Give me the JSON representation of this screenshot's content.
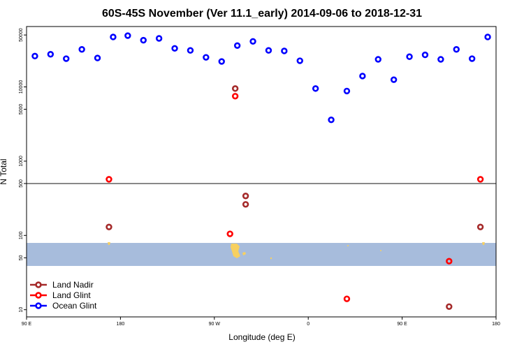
{
  "chart_data": {
    "type": "scatter",
    "title": "60S-45S November (Ver 11.1_early)   2014-09-06 to 2018-12-31",
    "xlabel": "Longitude (deg E)",
    "ylabel": "N Total",
    "x_ticks": [
      {
        "value": 90,
        "label": "90 E"
      },
      {
        "value": 180,
        "label": "180"
      },
      {
        "value": 270,
        "label": "90 W"
      },
      {
        "value": 360,
        "label": "0"
      },
      {
        "value": 450,
        "label": "90 E"
      },
      {
        "value": 540,
        "label": "180"
      }
    ],
    "xlim": [
      90,
      540
    ],
    "y_scale": "log",
    "y_ticks": [
      10,
      50,
      100,
      500,
      1000,
      5000,
      10000,
      50000
    ],
    "ylim": [
      8,
      65000
    ],
    "reference_line": 500,
    "ocean_band": [
      32,
      78
    ],
    "legend_position": "bottom-left",
    "series": [
      {
        "name": "Land Nadir",
        "color": "#a52a2a",
        "points": [
          {
            "x": 169,
            "y": 130
          },
          {
            "x": 290,
            "y": 9500
          },
          {
            "x": 300,
            "y": 340
          },
          {
            "x": 300,
            "y": 262
          },
          {
            "x": 495,
            "y": 11
          },
          {
            "x": 525,
            "y": 130
          }
        ]
      },
      {
        "name": "Land Glint",
        "color": "#ff0000",
        "points": [
          {
            "x": 169,
            "y": 570
          },
          {
            "x": 285,
            "y": 105
          },
          {
            "x": 290,
            "y": 7500
          },
          {
            "x": 397,
            "y": 14
          },
          {
            "x": 495,
            "y": 45
          },
          {
            "x": 525,
            "y": 570
          }
        ]
      },
      {
        "name": "Ocean Glint",
        "color": "#0000ff",
        "points": [
          {
            "x": 98,
            "y": 26000
          },
          {
            "x": 113,
            "y": 27500
          },
          {
            "x": 128,
            "y": 24000
          },
          {
            "x": 143,
            "y": 32000
          },
          {
            "x": 158,
            "y": 24500
          },
          {
            "x": 173,
            "y": 47000
          },
          {
            "x": 187,
            "y": 49000
          },
          {
            "x": 202,
            "y": 42500
          },
          {
            "x": 217,
            "y": 45000
          },
          {
            "x": 232,
            "y": 33000
          },
          {
            "x": 247,
            "y": 31000
          },
          {
            "x": 262,
            "y": 25000
          },
          {
            "x": 277,
            "y": 22000
          },
          {
            "x": 292,
            "y": 36000
          },
          {
            "x": 307,
            "y": 41000
          },
          {
            "x": 322,
            "y": 31000
          },
          {
            "x": 337,
            "y": 30500
          },
          {
            "x": 352,
            "y": 22500
          },
          {
            "x": 367,
            "y": 9500
          },
          {
            "x": 382,
            "y": 3600
          },
          {
            "x": 397,
            "y": 8800
          },
          {
            "x": 412,
            "y": 14000
          },
          {
            "x": 427,
            "y": 23500
          },
          {
            "x": 442,
            "y": 12500
          },
          {
            "x": 457,
            "y": 25500
          },
          {
            "x": 472,
            "y": 27000
          },
          {
            "x": 487,
            "y": 23500
          },
          {
            "x": 502,
            "y": 32000
          },
          {
            "x": 517,
            "y": 24000
          },
          {
            "x": 532,
            "y": 47000
          }
        ]
      }
    ],
    "colors": {
      "ocean_band": "#a7bcdc",
      "land_fill": "#f7d060",
      "axis": "#000000",
      "reference_line": "#555555"
    }
  }
}
